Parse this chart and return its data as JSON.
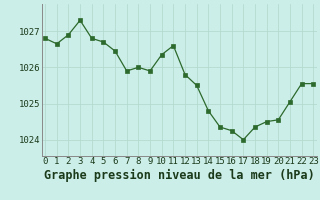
{
  "x": [
    0,
    1,
    2,
    3,
    4,
    5,
    6,
    7,
    8,
    9,
    10,
    11,
    12,
    13,
    14,
    15,
    16,
    17,
    18,
    19,
    20,
    21,
    22,
    23
  ],
  "y": [
    1026.8,
    1026.65,
    1026.9,
    1027.3,
    1026.8,
    1026.7,
    1026.45,
    1025.9,
    1026.0,
    1025.9,
    1026.35,
    1026.6,
    1025.8,
    1025.5,
    1024.8,
    1024.35,
    1024.25,
    1024.0,
    1024.35,
    1024.5,
    1024.55,
    1025.05,
    1025.55,
    1025.55
  ],
  "line_color": "#2d6a2d",
  "marker_color": "#2d6a2d",
  "bg_color": "#cceee8",
  "grid_color": "#b0d8cc",
  "title": "Graphe pression niveau de la mer (hPa)",
  "yticks": [
    1024,
    1025,
    1026,
    1027
  ],
  "xtick_labels": [
    "0",
    "1",
    "2",
    "3",
    "4",
    "5",
    "6",
    "7",
    "8",
    "9",
    "10",
    "11",
    "12",
    "13",
    "14",
    "15",
    "16",
    "17",
    "18",
    "19",
    "20",
    "21",
    "22",
    "23"
  ],
  "xlim": [
    -0.3,
    23.3
  ],
  "ylim": [
    1023.55,
    1027.75
  ],
  "title_fontsize": 8.5,
  "tick_fontsize": 6.5,
  "title_color": "#1a3a1a",
  "tick_color": "#1a3a1a",
  "spine_color": "#888888"
}
